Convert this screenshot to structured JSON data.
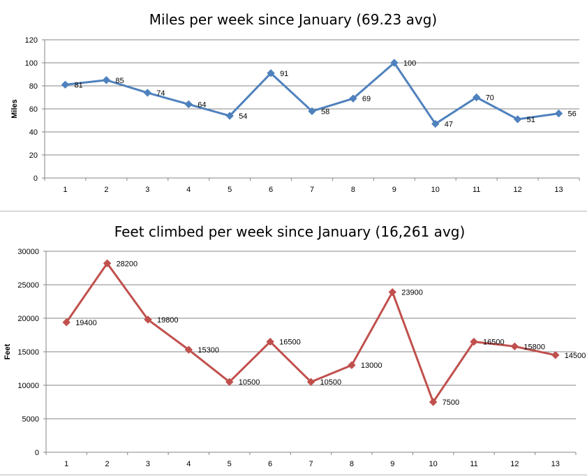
{
  "chart_data": [
    {
      "type": "line",
      "title": "Miles per week since January (69.23 avg)",
      "xlabel": "",
      "ylabel": "Miles",
      "categories": [
        "1",
        "2",
        "3",
        "4",
        "5",
        "6",
        "7",
        "8",
        "9",
        "10",
        "11",
        "12",
        "13"
      ],
      "series": [
        {
          "values": [
            81,
            85,
            74,
            64,
            54,
            91,
            58,
            69,
            100,
            47,
            70,
            51,
            56
          ],
          "color": "#4f81bd"
        }
      ],
      "ylim": [
        0,
        120
      ],
      "yticks": [
        "0",
        "20",
        "40",
        "60",
        "80",
        "100",
        "120"
      ],
      "grid": true,
      "legend": "none",
      "data_labels": [
        "81",
        "85",
        "74",
        "64",
        "54",
        "91",
        "58",
        "69",
        "100",
        "47",
        "70",
        "51",
        "56"
      ]
    },
    {
      "type": "line",
      "title": "Feet climbed per week since January (16,261 avg)",
      "xlabel": "",
      "ylabel": "Feet",
      "categories": [
        "1",
        "2",
        "3",
        "4",
        "5",
        "6",
        "7",
        "8",
        "9",
        "10",
        "11",
        "12",
        "13"
      ],
      "series": [
        {
          "values": [
            19400,
            28200,
            19800,
            15300,
            10500,
            16500,
            10500,
            13000,
            23900,
            7500,
            16500,
            15800,
            14500
          ],
          "color": "#c0504d"
        }
      ],
      "ylim": [
        0,
        30000
      ],
      "yticks": [
        "0",
        "5000",
        "10000",
        "15000",
        "20000",
        "25000",
        "30000"
      ],
      "grid": true,
      "legend": "none",
      "data_labels": [
        "19400",
        "28200",
        "19800",
        "15300",
        "10500",
        "16500",
        "10500",
        "13000",
        "23900",
        "7500",
        "16500",
        "15800",
        "14500"
      ]
    }
  ]
}
